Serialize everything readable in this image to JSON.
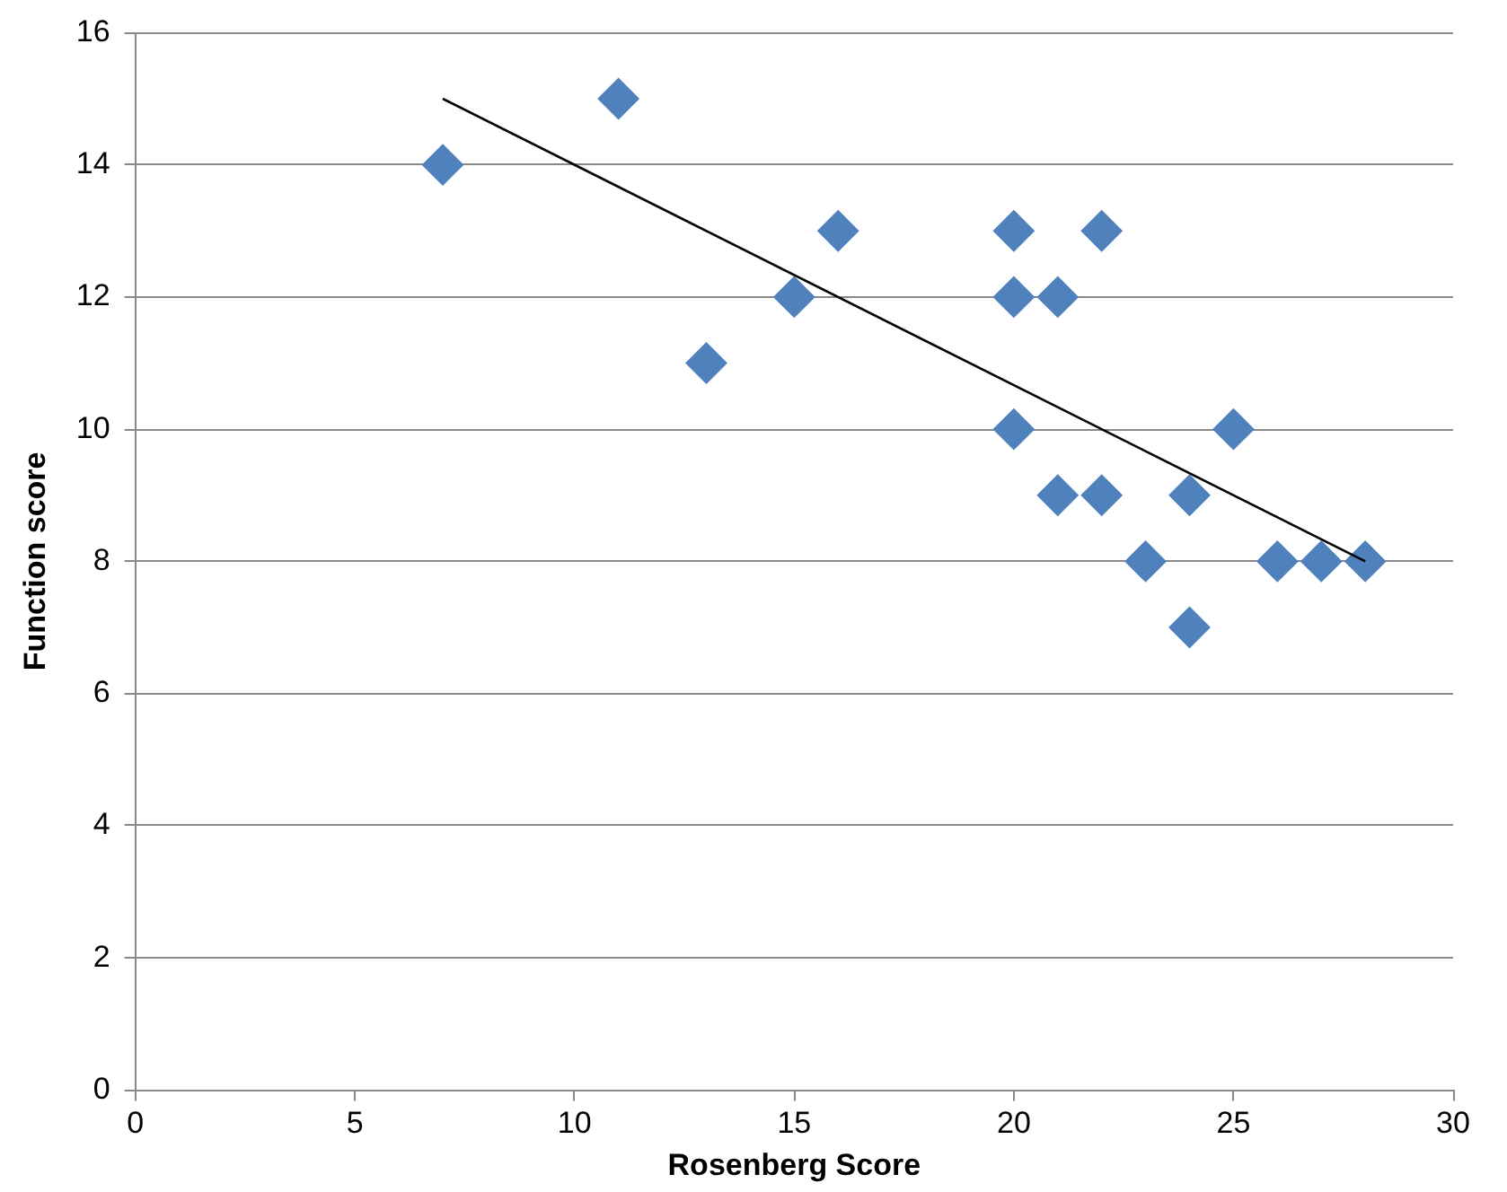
{
  "chart_data": {
    "type": "scatter",
    "xlabel": "Rosenberg Score",
    "ylabel": "Function score",
    "xlim": [
      0,
      30
    ],
    "xticks": [
      0,
      5,
      10,
      15,
      20,
      25,
      30
    ],
    "ylim": [
      0,
      16
    ],
    "yticks": [
      0,
      2,
      4,
      6,
      8,
      10,
      12,
      14,
      16
    ],
    "grid": "y",
    "legend": false,
    "marker": "diamond",
    "series": [
      {
        "type": "scatter",
        "color": "#4f81bd",
        "x": [
          7,
          11,
          13,
          15,
          16,
          20,
          20,
          20,
          21,
          21,
          22,
          22,
          23,
          24,
          24,
          25,
          26,
          27,
          28
        ],
        "values": [
          14,
          15,
          11,
          12,
          13,
          13,
          12,
          10,
          12,
          9,
          13,
          9,
          8,
          9,
          7,
          10,
          8,
          8,
          8
        ]
      },
      {
        "type": "line",
        "color": "#000000",
        "x": [
          7,
          28
        ],
        "values": [
          15,
          8
        ],
        "marker": "none",
        "line_style": "solid"
      }
    ]
  }
}
